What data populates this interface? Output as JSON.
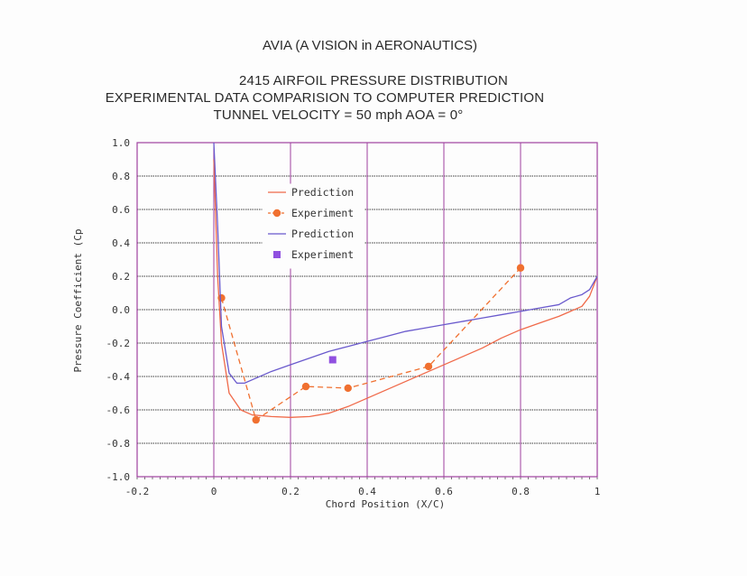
{
  "header": {
    "org": "AVIA (A VISION in AERONAUTICS)",
    "line1": "2415 AIRFOIL PRESSURE DISTRIBUTION",
    "line2": "EXPERIMENTAL DATA COMPARISION TO COMPUTER PREDICTION",
    "line3": "TUNNEL VELOCITY = 50 mph  AOA = 0°"
  },
  "chart_data": {
    "type": "line",
    "title": "2415 AIRFOIL PRESSURE DISTRIBUTION",
    "xlabel": "Chord Position (X/C)",
    "ylabel": "Pressure Coefficient (Cp",
    "xlim": [
      -0.2,
      1.0
    ],
    "ylim": [
      -1.0,
      1.0
    ],
    "x_ticks": [
      -0.2,
      0,
      0.2,
      0.4,
      0.6,
      0.8,
      1
    ],
    "x_tick_labels": [
      "-0.2",
      "0",
      "0.2",
      "0.4",
      "0.6",
      "0.8",
      "1"
    ],
    "y_ticks": [
      1.0,
      0.8,
      0.6,
      0.4,
      0.2,
      0.0,
      -0.2,
      -0.4,
      -0.6,
      -0.8,
      -1.0
    ],
    "y_tick_labels": [
      "1.0",
      "0.8",
      "0.6",
      "0.4",
      "0.2",
      "0.0",
      "-0.2",
      "-0.4",
      "-0.6",
      "-0.8",
      "-1.0"
    ],
    "grid": true,
    "legend_position": "top-left",
    "series": [
      {
        "name": "Prediction",
        "style": "solid",
        "color": "#f06a4a",
        "x": [
          0.0,
          0.01,
          0.02,
          0.04,
          0.07,
          0.1,
          0.15,
          0.2,
          0.25,
          0.3,
          0.35,
          0.4,
          0.45,
          0.5,
          0.55,
          0.6,
          0.65,
          0.7,
          0.75,
          0.8,
          0.85,
          0.9,
          0.93,
          0.96,
          0.98,
          1.0
        ],
        "y": [
          0.9,
          0.2,
          -0.2,
          -0.5,
          -0.6,
          -0.63,
          -0.64,
          -0.645,
          -0.64,
          -0.62,
          -0.58,
          -0.53,
          -0.48,
          -0.43,
          -0.38,
          -0.33,
          -0.28,
          -0.23,
          -0.17,
          -0.12,
          -0.08,
          -0.04,
          -0.01,
          0.02,
          0.08,
          0.2
        ]
      },
      {
        "name": "Experiment",
        "style": "dashed",
        "marker": "circle",
        "color": "#f07030",
        "x": [
          0.02,
          0.11,
          0.24,
          0.35,
          0.56,
          0.8
        ],
        "y": [
          0.07,
          -0.66,
          -0.46,
          -0.47,
          -0.34,
          0.25
        ]
      },
      {
        "name": "Prediction",
        "style": "solid",
        "color": "#6a5acd",
        "x": [
          0.0,
          0.01,
          0.02,
          0.04,
          0.06,
          0.08,
          0.1,
          0.15,
          0.2,
          0.25,
          0.3,
          0.35,
          0.4,
          0.45,
          0.5,
          0.55,
          0.6,
          0.65,
          0.7,
          0.75,
          0.8,
          0.85,
          0.9,
          0.93,
          0.96,
          0.98,
          1.0
        ],
        "y": [
          1.0,
          0.5,
          -0.1,
          -0.38,
          -0.44,
          -0.44,
          -0.42,
          -0.37,
          -0.33,
          -0.29,
          -0.25,
          -0.22,
          -0.19,
          -0.16,
          -0.13,
          -0.11,
          -0.09,
          -0.07,
          -0.05,
          -0.03,
          -0.01,
          0.01,
          0.03,
          0.07,
          0.09,
          0.12,
          0.2
        ]
      },
      {
        "name": "Experiment",
        "style": "none",
        "marker": "square",
        "color": "#9050e0",
        "x": [
          0.31
        ],
        "y": [
          -0.3
        ]
      }
    ]
  }
}
